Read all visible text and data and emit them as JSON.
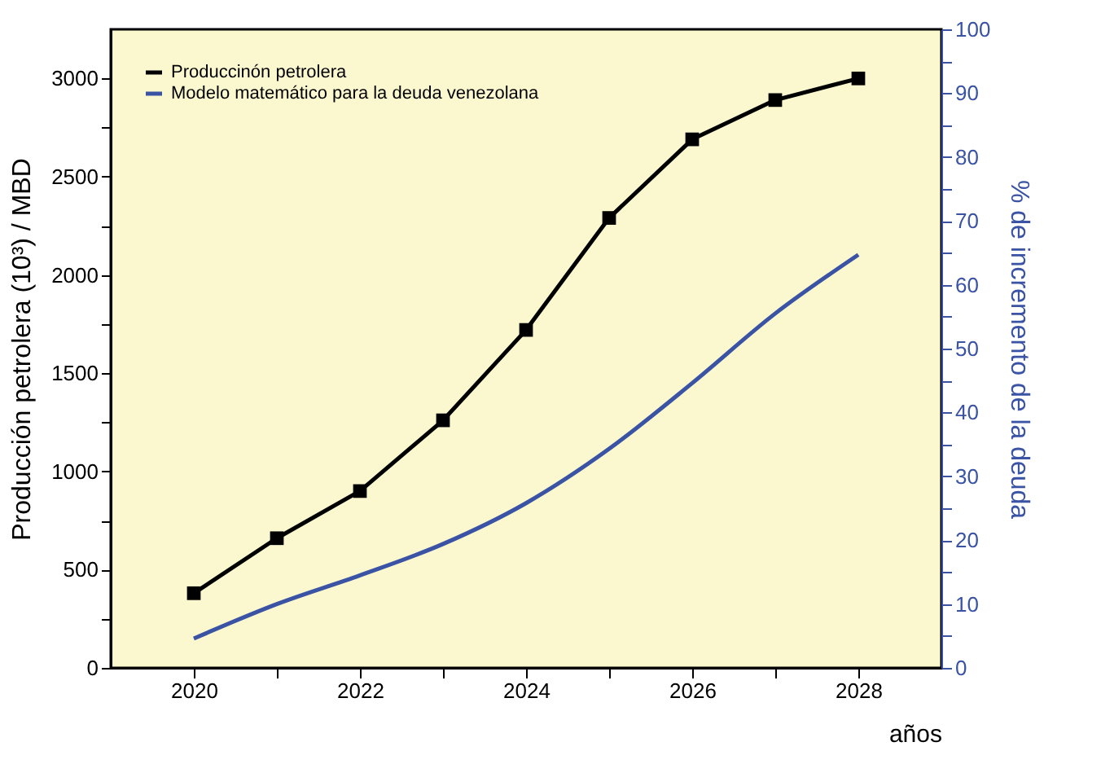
{
  "chart_data": {
    "type": "line",
    "xlabel": "años",
    "ylabel": "Producción petrolera (10³) / MBD",
    "y2label": "% de incremento de la deuda",
    "x": [
      2020,
      2021,
      2022,
      2023,
      2024,
      2025,
      2026,
      2027,
      2028
    ],
    "xlim": [
      2019,
      2029
    ],
    "xticks": [
      2020,
      {
        "value": 2021,
        "label": null
      },
      2022,
      {
        "value": 2023,
        "label": null
      },
      2024,
      {
        "value": 2025,
        "label": null
      },
      2026,
      {
        "value": 2027,
        "label": null
      },
      2028
    ],
    "ylim": [
      0,
      3250
    ],
    "yticks": [
      0,
      {
        "value": 250,
        "label": null
      },
      500,
      {
        "value": 750,
        "label": null
      },
      1000,
      {
        "value": 1250,
        "label": null
      },
      1500,
      {
        "value": 1750,
        "label": null
      },
      2000,
      {
        "value": 2250,
        "label": null
      },
      2500,
      {
        "value": 2750,
        "label": null
      },
      3000
    ],
    "y2lim": [
      0,
      100
    ],
    "y2ticks": [
      0,
      {
        "value": 5,
        "label": null
      },
      10,
      {
        "value": 15,
        "label": null
      },
      20,
      {
        "value": 25,
        "label": null
      },
      30,
      {
        "value": 35,
        "label": null
      },
      40,
      {
        "value": 45,
        "label": null
      },
      50,
      {
        "value": 55,
        "label": null
      },
      60,
      {
        "value": 65,
        "label": null
      },
      70,
      {
        "value": 75,
        "label": null
      },
      80,
      {
        "value": 85,
        "label": null
      },
      90,
      {
        "value": 95,
        "label": null
      },
      100
    ],
    "series": [
      {
        "name": "Produccinón petrolera",
        "color": "#000000",
        "marker": "square",
        "values": [
          380,
          660,
          900,
          1260,
          1720,
          2290,
          2690,
          2890,
          3000
        ]
      },
      {
        "name": "Modelo matemático para la deuda venezolana",
        "color": "#3a53a4",
        "marker": "none",
        "axis": "y2",
        "values": [
          4.6,
          10.0,
          14.5,
          19.4,
          25.8,
          34.3,
          44.6,
          55.5,
          64.7
        ]
      }
    ],
    "legend": "top left",
    "grid": false,
    "line_style": "solid"
  }
}
